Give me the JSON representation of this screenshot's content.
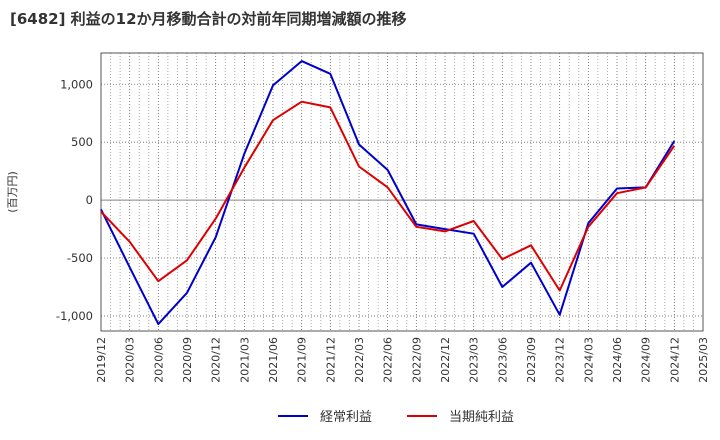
{
  "title": "[6482]  利益の12か月移動合計の対前年同期増減額の推移",
  "chart_data": {
    "type": "line",
    "title": "[6482]  利益の12か月移動合計の対前年同期増減額の推移",
    "xlabel": "",
    "ylabel": "(百万円)",
    "ylim": [
      -1130,
      1270
    ],
    "yticks": [
      1000,
      500,
      0,
      -500,
      -1000
    ],
    "ytick_labels": [
      "1,000",
      "500",
      "0",
      "-500",
      "-1,000"
    ],
    "grid": true,
    "legend": "bottom-center",
    "categories": [
      "2019/12",
      "2020/03",
      "2020/06",
      "2020/09",
      "2020/12",
      "2021/03",
      "2021/06",
      "2021/09",
      "2021/12",
      "2022/03",
      "2022/06",
      "2022/09",
      "2022/12",
      "2023/03",
      "2023/06",
      "2023/09",
      "2023/12",
      "2024/03",
      "2024/06",
      "2024/09",
      "2024/12",
      "2025/03"
    ],
    "series": [
      {
        "name": "経常利益",
        "color": "#0000cc",
        "values": [
          -80,
          -580,
          -1070,
          -800,
          -320,
          400,
          990,
          1200,
          1090,
          480,
          260,
          -210,
          -250,
          -290,
          -750,
          -540,
          -990,
          -200,
          100,
          110,
          510,
          null
        ]
      },
      {
        "name": "当期純利益",
        "color": "#dd0000",
        "values": [
          -100,
          -360,
          -700,
          -520,
          -160,
          280,
          690,
          850,
          800,
          290,
          110,
          -230,
          -270,
          -180,
          -510,
          -390,
          -780,
          -230,
          60,
          110,
          470,
          null
        ]
      }
    ]
  }
}
